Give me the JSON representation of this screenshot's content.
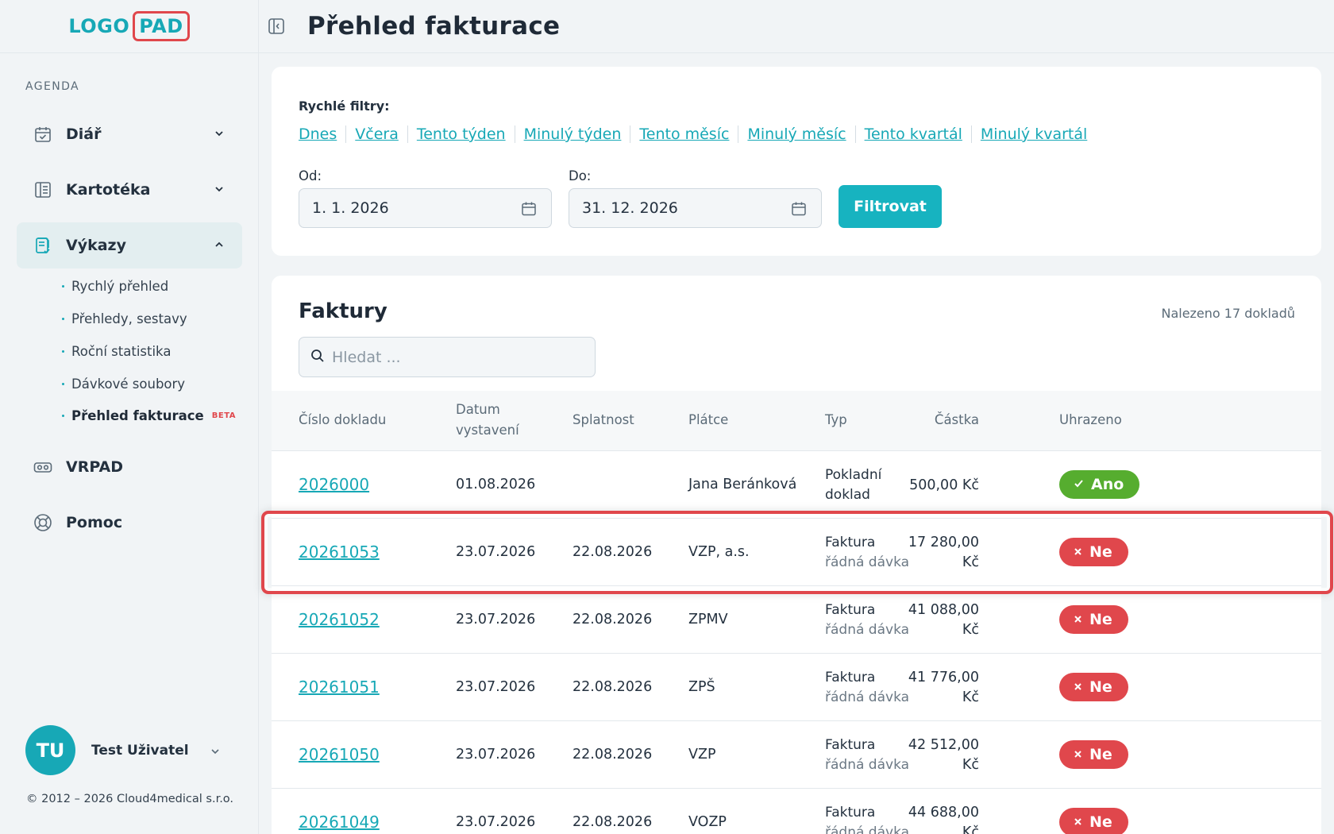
{
  "app": {
    "logo_text": "LOGO",
    "logo_pad": "PAD",
    "page_title": "Přehled fakturace"
  },
  "sidebar": {
    "section": "AGENDA",
    "items": [
      {
        "label": "Diář",
        "icon": "calendar-icon",
        "expanded": false
      },
      {
        "label": "Kartotéka",
        "icon": "card-index-icon",
        "expanded": false
      },
      {
        "label": "Výkazy",
        "icon": "report-icon",
        "expanded": true
      },
      {
        "label": "VRPAD",
        "icon": "vr-headset-icon"
      },
      {
        "label": "Pomoc",
        "icon": "lifebuoy-icon"
      }
    ],
    "subitems": [
      {
        "label": "Rychlý přehled"
      },
      {
        "label": "Přehledy, sestavy"
      },
      {
        "label": "Roční statistika"
      },
      {
        "label": "Dávkové soubory"
      },
      {
        "label": "Přehled fakturace",
        "badge": "BETA",
        "current": true
      }
    ],
    "user": {
      "initials": "TU",
      "name": "Test Uživatel"
    },
    "copyright": "© 2012 – 2026 Cloud4medical s.r.o."
  },
  "filters": {
    "quick_label": "Rychlé filtry:",
    "quick_links": [
      "Dnes",
      "Včera",
      "Tento týden",
      "Minulý týden",
      "Tento měsíc",
      "Minulý měsíc",
      "Tento kvartál",
      "Minulý kvartál"
    ],
    "from_label": "Od:",
    "from_value": "1. 1. 2026",
    "to_label": "Do:",
    "to_value": "31. 12. 2026",
    "button": "Filtrovat"
  },
  "invoices": {
    "title": "Faktury",
    "found": "Nalezeno 17 dokladů",
    "search_placeholder": "Hledat ...",
    "columns": {
      "number": "Číslo dokladu",
      "issued_1": "Datum",
      "issued_2": "vystavení",
      "due": "Splatnost",
      "payer": "Plátce",
      "type": "Typ",
      "amount": "Částka",
      "paid": "Uhrazeno"
    },
    "rows": [
      {
        "number": "2026000",
        "issued": "01.08.2026",
        "due": "",
        "payer": "Jana Beránková",
        "type1": "Pokladní",
        "type2": "doklad",
        "amount1": "500,00 Kč",
        "amount2": "",
        "paid": "Ano",
        "paid_status": "yes"
      },
      {
        "number": "20261053",
        "issued": "23.07.2026",
        "due": "22.08.2026",
        "payer": "VZP, a.s.",
        "type1": "Faktura",
        "type2": "řádná dávka",
        "amount1": "17 280,00",
        "amount2": "Kč",
        "paid": "Ne",
        "paid_status": "no"
      },
      {
        "number": "20261052",
        "issued": "23.07.2026",
        "due": "22.08.2026",
        "payer": "ZPMV",
        "type1": "Faktura",
        "type2": "řádná dávka",
        "amount1": "41 088,00",
        "amount2": "Kč",
        "paid": "Ne",
        "paid_status": "no"
      },
      {
        "number": "20261051",
        "issued": "23.07.2026",
        "due": "22.08.2026",
        "payer": "ZPŠ",
        "type1": "Faktura",
        "type2": "řádná dávka",
        "amount1": "41 776,00",
        "amount2": "Kč",
        "paid": "Ne",
        "paid_status": "no"
      },
      {
        "number": "20261050",
        "issued": "23.07.2026",
        "due": "22.08.2026",
        "payer": "VZP",
        "type1": "Faktura",
        "type2": "řádná dávka",
        "amount1": "42 512,00",
        "amount2": "Kč",
        "paid": "Ne",
        "paid_status": "no"
      },
      {
        "number": "20261049",
        "issued": "23.07.2026",
        "due": "22.08.2026",
        "payer": "VOZP",
        "type1": "Faktura",
        "type2": "řádná dávka",
        "amount1": "44 688,00",
        "amount2": "Kč",
        "paid": "Ne",
        "paid_status": "no"
      }
    ]
  },
  "colors": {
    "accent": "#17a8b6",
    "brand_red": "#e0474c",
    "paid_green": "#56ad2f"
  }
}
